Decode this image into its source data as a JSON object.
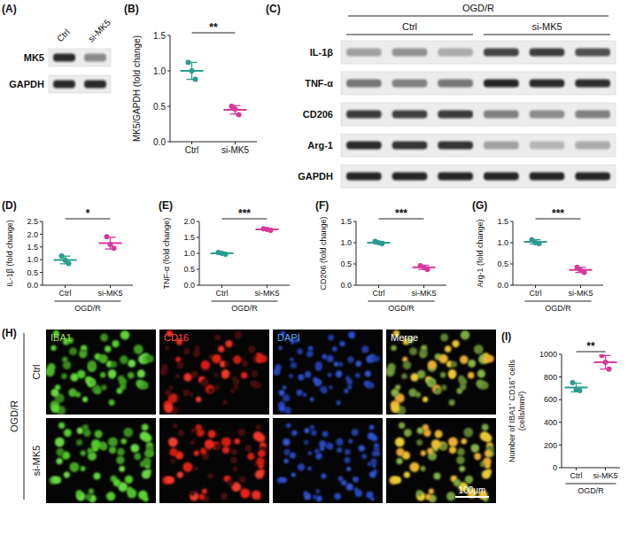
{
  "chart_data": [
    {
      "type": "dot",
      "panel": "(B)",
      "ylabel": "MK5/GAPDH (fold change)",
      "categories": [
        "Ctrl",
        "si-MK5"
      ],
      "colors": [
        "#2a9d8f",
        "#d6399a"
      ],
      "values": [
        [
          1.12,
          1.0,
          0.88
        ],
        [
          0.5,
          0.46,
          0.38
        ]
      ],
      "mean": [
        1.0,
        0.45
      ],
      "sd": [
        0.12,
        0.06
      ],
      "ylim": [
        0,
        1.5
      ],
      "yticks": [
        {
          "value": 0,
          "label": "0.0"
        },
        0.5,
        {
          "value": 1,
          "label": "1.0"
        },
        1.5
      ],
      "annotation": "**",
      "grid": false
    },
    {
      "type": "dot",
      "panel": "(D)",
      "ylabel": "IL-1β (fold change)",
      "group_label": "OGD/R",
      "categories": [
        "Ctrl",
        "si-MK5"
      ],
      "colors": [
        "#2a9d8f",
        "#d6399a"
      ],
      "values": [
        [
          1.15,
          0.98,
          0.85
        ],
        [
          1.9,
          1.6,
          1.45
        ]
      ],
      "mean": [
        0.99,
        1.65
      ],
      "sd": [
        0.15,
        0.23
      ],
      "ylim": [
        0,
        2.5
      ],
      "yticks": [
        {
          "value": 0,
          "label": "0.0"
        },
        0.5,
        {
          "value": 1,
          "label": "1.0"
        },
        1.5,
        {
          "value": 2,
          "label": "2.0"
        },
        2.5
      ],
      "annotation": "*",
      "grid": false
    },
    {
      "type": "dot",
      "panel": "(E)",
      "ylabel": "TNF-α (fold change)",
      "group_label": "OGD/R",
      "categories": [
        "Ctrl",
        "si-MK5"
      ],
      "colors": [
        "#2a9d8f",
        "#d6399a"
      ],
      "values": [
        [
          1.03,
          1.0,
          0.97
        ],
        [
          1.77,
          1.75,
          1.72
        ]
      ],
      "mean": [
        1.0,
        1.75
      ],
      "sd": [
        0.03,
        0.03
      ],
      "ylim": [
        0,
        2
      ],
      "yticks": [
        {
          "value": 0,
          "label": "0.0"
        },
        0.5,
        {
          "value": 1,
          "label": "1.0"
        },
        1.5,
        {
          "value": 2,
          "label": "2.0"
        }
      ],
      "annotation": "***",
      "grid": false
    },
    {
      "type": "dot",
      "panel": "(F)",
      "ylabel": "CD206 (fold change)",
      "group_label": "OGD/R",
      "categories": [
        "Ctrl",
        "si-MK5"
      ],
      "colors": [
        "#2a9d8f",
        "#d6399a"
      ],
      "values": [
        [
          1.03,
          1.0,
          0.98
        ],
        [
          0.46,
          0.42,
          0.37
        ]
      ],
      "mean": [
        1.0,
        0.42
      ],
      "sd": [
        0.03,
        0.05
      ],
      "ylim": [
        0,
        1.5
      ],
      "yticks": [
        {
          "value": 0,
          "label": "0.0"
        },
        0.5,
        {
          "value": 1,
          "label": "1.0"
        },
        1.5
      ],
      "annotation": "***",
      "grid": false
    },
    {
      "type": "dot",
      "panel": "(G)",
      "ylabel": "Arg-1 (fold change)",
      "group_label": "OGD/R",
      "categories": [
        "Ctrl",
        "si-MK5"
      ],
      "colors": [
        "#2a9d8f",
        "#d6399a"
      ],
      "values": [
        [
          1.07,
          1.0,
          0.98
        ],
        [
          0.42,
          0.35,
          0.3
        ]
      ],
      "mean": [
        1.02,
        0.36
      ],
      "sd": [
        0.05,
        0.06
      ],
      "ylim": [
        0,
        1.5
      ],
      "yticks": [
        {
          "value": 0,
          "label": "0.0"
        },
        0.5,
        {
          "value": 1,
          "label": "1.0"
        },
        1.5
      ],
      "annotation": "***",
      "grid": false
    },
    {
      "type": "dot",
      "panel": "(I)",
      "ylabel": "Number of IBA1⁺ CD16⁺ cells (cells/mm²)",
      "group_label": "OGD/R",
      "categories": [
        "Ctrl",
        "si-MK5"
      ],
      "colors": [
        "#2a9d8f",
        "#d6399a"
      ],
      "values": [
        [
          750,
          690,
          680
        ],
        [
          990,
          930,
          870
        ]
      ],
      "mean": [
        707,
        930
      ],
      "sd": [
        38,
        60
      ],
      "ylim": [
        0,
        1000
      ],
      "yticks": [
        0,
        200,
        400,
        600,
        800,
        1000
      ],
      "annotation": "**",
      "grid": false
    }
  ],
  "blots": [
    {
      "panel": "(A)",
      "lanes": [
        "Ctrl",
        "si-MK5"
      ],
      "rows": [
        "MK5",
        "GAPDH"
      ]
    },
    {
      "panel": "(C)",
      "condition": "OGD/R",
      "groups": [
        "Ctrl",
        "si-MK5"
      ],
      "rows": [
        "IL-1β",
        "TNF-α",
        "CD206",
        "Arg-1",
        "GAPDH"
      ]
    }
  ],
  "images": {
    "panel": "(H)",
    "condition": "OGD/R",
    "rows": [
      "Ctrl",
      "si-MK5"
    ],
    "channels": [
      "IBA1",
      "CD16",
      "DAPI",
      "Merge"
    ],
    "scale_bar": "100μm"
  }
}
